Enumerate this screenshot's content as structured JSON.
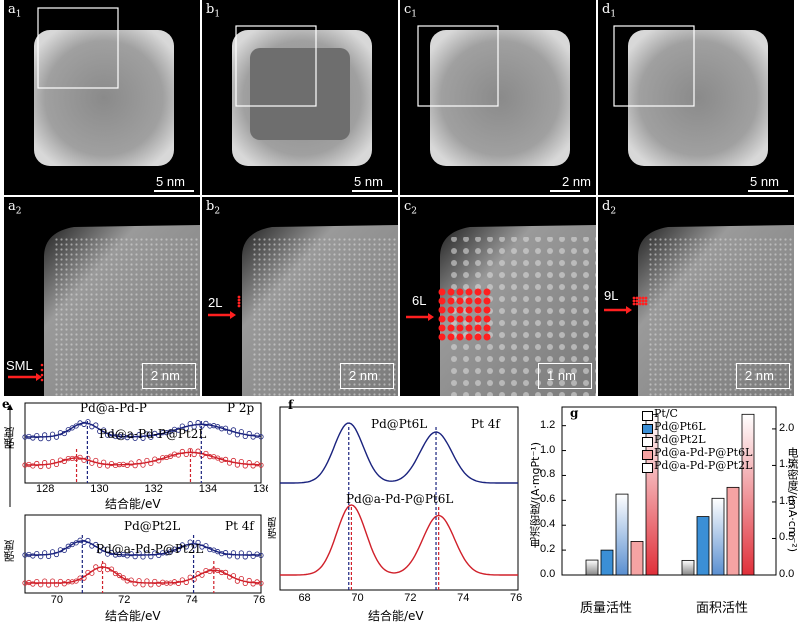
{
  "stem": {
    "top_labels": [
      "a",
      "b",
      "c",
      "d"
    ],
    "top_sub": "1",
    "bottom_sub": "2",
    "top_scales": [
      "5 nm",
      "5 nm",
      "2 nm",
      "5 nm"
    ],
    "bottom_scales": [
      "2 nm",
      "2 nm",
      "1 nm",
      "2 nm"
    ],
    "layer_labels": [
      "SML",
      "2L",
      "6L",
      "9L"
    ],
    "layer_label_suffix": "L"
  },
  "panel_e": {
    "label": "e",
    "top": {
      "xlabel": "结合能/eV",
      "ylabel": "强度",
      "tag": "P 2p",
      "series": [
        "Pd@a-Pd-P",
        "Pd@a-Pd-P@Pt2L"
      ],
      "ticks": [
        "128",
        "130",
        "132",
        "134",
        "136"
      ]
    },
    "bottom": {
      "xlabel": "结合能/eV",
      "ylabel": "强度",
      "tag": "Pt 4f",
      "series": [
        "Pd@Pt2L",
        "Pd@a-Pd-P@Pt2L"
      ],
      "ticks": [
        "70",
        "72",
        "74",
        "76"
      ]
    }
  },
  "panel_f": {
    "label": "f",
    "tag": "Pt 4f",
    "xlabel": "结合能/eV",
    "ylabel": "强度",
    "series": [
      "Pd@Pt6L",
      "Pd@a-Pd-P@Pt6L"
    ],
    "ticks": [
      "68",
      "70",
      "72",
      "74",
      "76"
    ]
  },
  "panel_g": {
    "label": "g",
    "ylabel_left": "电流密度/(A·mgPt⁻¹)",
    "ylabel_right": "电流密度/(mA·cm⁻²)",
    "categories": [
      "质量活性",
      "面积活性"
    ],
    "left_ticks": [
      "0.0",
      "0.2",
      "0.4",
      "0.6",
      "0.8",
      "1.0",
      "1.2"
    ],
    "right_ticks": [
      "0.0",
      "0.5",
      "1.0",
      "1.5",
      "2.0"
    ],
    "legend": [
      "Pt/C",
      "Pd@Pt6L",
      "Pd@Pt2L",
      "Pd@a-Pd-P@Pt6L",
      "Pd@a-Pd-P@Pt2L"
    ]
  },
  "chart_data": {
    "type": "bar",
    "categories": [
      "质量活性",
      "面积活性"
    ],
    "ylabel": "电流密度/(A·mgPt⁻¹)",
    "ylim": [
      0,
      1.35
    ],
    "y2label": "电流密度/(mA·cm⁻²)",
    "y2lim": [
      0,
      2.3
    ],
    "series": [
      {
        "name": "Pt/C",
        "color": "#ffffff",
        "values": [
          0.12,
          0.2
        ]
      },
      {
        "name": "Pd@Pt6L",
        "color": "#3b8fd6",
        "values": [
          0.2,
          0.8
        ]
      },
      {
        "name": "Pd@Pt2L",
        "color": "#ffffff",
        "values": [
          0.65,
          1.05
        ]
      },
      {
        "name": "Pd@a-Pd-P@Pt6L",
        "color": "#f5a3a3",
        "values": [
          0.27,
          1.2
        ]
      },
      {
        "name": "Pd@a-Pd-P@Pt2L",
        "color": "#ffffff",
        "values": [
          1.29,
          2.2
        ]
      }
    ],
    "legend_position": "top-left"
  }
}
